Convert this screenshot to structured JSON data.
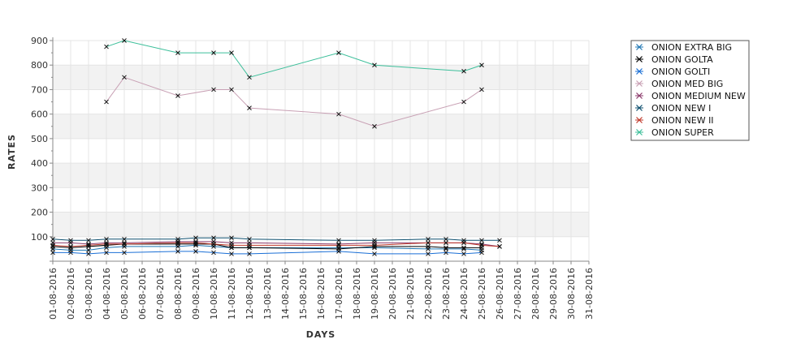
{
  "chart_data": {
    "type": "line",
    "xlabel": "DAYS",
    "ylabel": "RATES",
    "ylim": [
      0,
      900
    ],
    "yticks": [
      100,
      200,
      300,
      400,
      500,
      600,
      700,
      800,
      900
    ],
    "categories": [
      "01-08-2016",
      "02-08-2016",
      "03-08-2016",
      "04-08-2016",
      "05-08-2016",
      "06-08-2016",
      "07-08-2016",
      "08-08-2016",
      "09-08-2016",
      "10-08-2016",
      "11-08-2016",
      "12-08-2016",
      "13-08-2016",
      "14-08-2016",
      "15-08-2016",
      "16-08-2016",
      "17-08-2016",
      "18-08-2016",
      "19-08-2016",
      "20-08-2016",
      "21-08-2016",
      "22-08-2016",
      "23-08-2016",
      "24-08-2016",
      "25-08-2016",
      "26-08-2016",
      "27-08-2016",
      "28-08-2016",
      "29-08-2016",
      "30-08-2016",
      "31-08-2016"
    ],
    "grid": true,
    "legend_position": "right",
    "series": [
      {
        "name": "ONION EXTRA BIG",
        "color": "#1f77b4",
        "points": [
          [
            1,
            50
          ],
          [
            2,
            45
          ],
          [
            3,
            45
          ],
          [
            4,
            55
          ],
          [
            5,
            60
          ],
          [
            8,
            60
          ],
          [
            9,
            65
          ],
          [
            10,
            60
          ],
          [
            11,
            55
          ],
          [
            12,
            55
          ],
          [
            17,
            55
          ],
          [
            19,
            55
          ],
          [
            22,
            50
          ],
          [
            23,
            50
          ],
          [
            24,
            50
          ],
          [
            25,
            45
          ]
        ]
      },
      {
        "name": "ONION GOLTA",
        "color": "#000000",
        "points": [
          [
            1,
            60
          ],
          [
            2,
            55
          ],
          [
            3,
            60
          ],
          [
            4,
            65
          ],
          [
            5,
            70
          ],
          [
            8,
            70
          ],
          [
            9,
            70
          ],
          [
            10,
            70
          ],
          [
            11,
            55
          ],
          [
            12,
            55
          ],
          [
            17,
            50
          ],
          [
            19,
            60
          ],
          [
            22,
            60
          ],
          [
            23,
            55
          ],
          [
            24,
            55
          ],
          [
            25,
            55
          ]
        ]
      },
      {
        "name": "ONION GOLTI",
        "color": "#1a6fd6",
        "points": [
          [
            1,
            35
          ],
          [
            2,
            35
          ],
          [
            3,
            30
          ],
          [
            4,
            35
          ],
          [
            5,
            35
          ],
          [
            8,
            40
          ],
          [
            9,
            40
          ],
          [
            10,
            35
          ],
          [
            11,
            30
          ],
          [
            12,
            30
          ],
          [
            17,
            40
          ],
          [
            19,
            30
          ],
          [
            22,
            30
          ],
          [
            23,
            35
          ],
          [
            24,
            30
          ],
          [
            25,
            35
          ]
        ]
      },
      {
        "name": "ONION MED BIG",
        "color": "#c8a0b4",
        "points": [
          [
            4,
            650
          ],
          [
            5,
            750
          ],
          [
            8,
            675
          ],
          [
            10,
            700
          ],
          [
            11,
            700
          ],
          [
            12,
            625
          ],
          [
            17,
            600
          ],
          [
            19,
            550
          ],
          [
            24,
            650
          ],
          [
            25,
            700
          ]
        ]
      },
      {
        "name": "ONION MEDIUM NEW",
        "color": "#8b3a6b",
        "points": [
          [
            1,
            75
          ],
          [
            2,
            75
          ],
          [
            3,
            70
          ],
          [
            4,
            75
          ],
          [
            5,
            75
          ],
          [
            8,
            80
          ],
          [
            9,
            80
          ],
          [
            10,
            80
          ],
          [
            11,
            75
          ],
          [
            12,
            75
          ],
          [
            17,
            70
          ],
          [
            19,
            75
          ],
          [
            22,
            75
          ],
          [
            23,
            75
          ],
          [
            24,
            75
          ],
          [
            25,
            70
          ],
          [
            26,
            60
          ]
        ]
      },
      {
        "name": "ONION NEW I",
        "color": "#0d4f6e",
        "points": [
          [
            1,
            90
          ],
          [
            2,
            85
          ],
          [
            3,
            85
          ],
          [
            4,
            90
          ],
          [
            5,
            90
          ],
          [
            8,
            90
          ],
          [
            9,
            95
          ],
          [
            10,
            95
          ],
          [
            11,
            95
          ],
          [
            12,
            90
          ],
          [
            17,
            85
          ],
          [
            19,
            85
          ],
          [
            22,
            90
          ],
          [
            23,
            90
          ],
          [
            24,
            85
          ],
          [
            25,
            85
          ],
          [
            26,
            85
          ]
        ]
      },
      {
        "name": "ONION NEW II",
        "color": "#c0392b",
        "points": [
          [
            1,
            65
          ],
          [
            2,
            60
          ],
          [
            3,
            65
          ],
          [
            4,
            70
          ],
          [
            5,
            70
          ],
          [
            8,
            75
          ],
          [
            9,
            75
          ],
          [
            10,
            70
          ],
          [
            11,
            65
          ],
          [
            12,
            65
          ],
          [
            17,
            65
          ],
          [
            19,
            65
          ],
          [
            22,
            75
          ],
          [
            23,
            75
          ],
          [
            24,
            75
          ],
          [
            25,
            65
          ],
          [
            26,
            60
          ]
        ]
      },
      {
        "name": "ONION SUPER",
        "color": "#3cbf9a",
        "points": [
          [
            4,
            875
          ],
          [
            5,
            900
          ],
          [
            8,
            850
          ],
          [
            10,
            850
          ],
          [
            11,
            850
          ],
          [
            12,
            750
          ],
          [
            17,
            850
          ],
          [
            19,
            800
          ],
          [
            24,
            775
          ],
          [
            25,
            800
          ]
        ]
      }
    ]
  }
}
